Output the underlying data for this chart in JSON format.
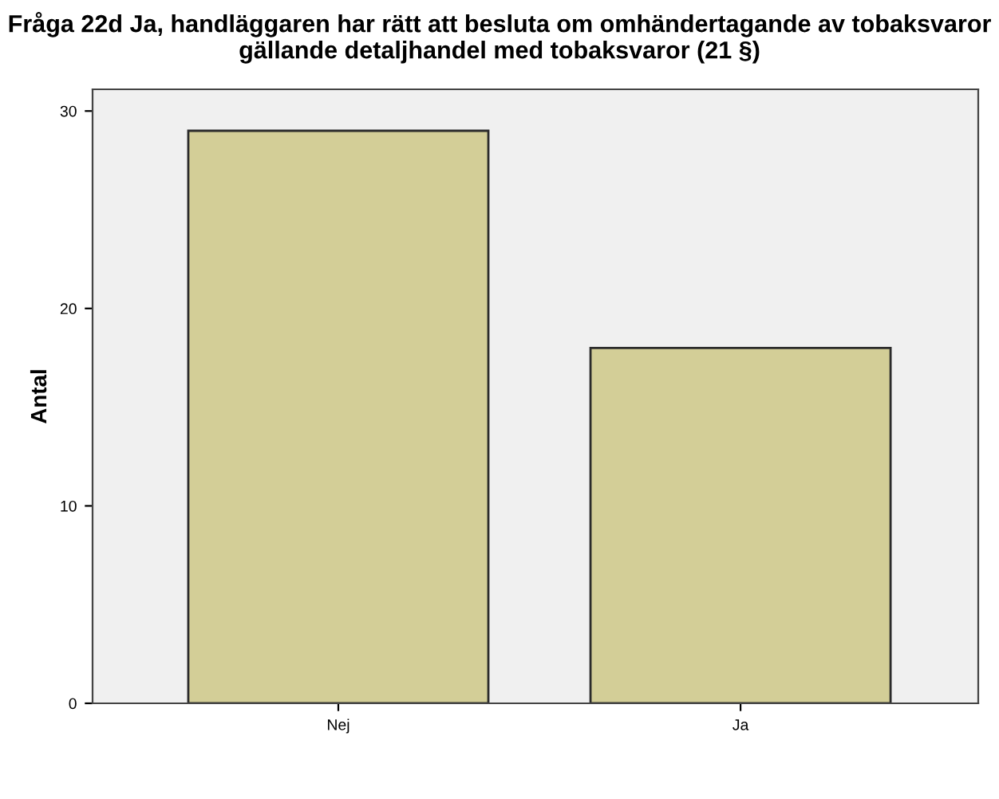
{
  "chart_data": {
    "type": "bar",
    "title": "Fråga 22d Ja, handläggaren har rätt att besluta om omhändertagande av tobaksvaror gällande detaljhandel med tobaksvaror (21 §)",
    "ylabel": "Antal",
    "categories": [
      "Nej",
      "Ja"
    ],
    "values": [
      29,
      18
    ],
    "color": "#d3ce97",
    "ylim": [
      0,
      31.1
    ],
    "yticks": [
      0,
      10,
      20,
      30
    ],
    "grid": false,
    "legend": false
  }
}
